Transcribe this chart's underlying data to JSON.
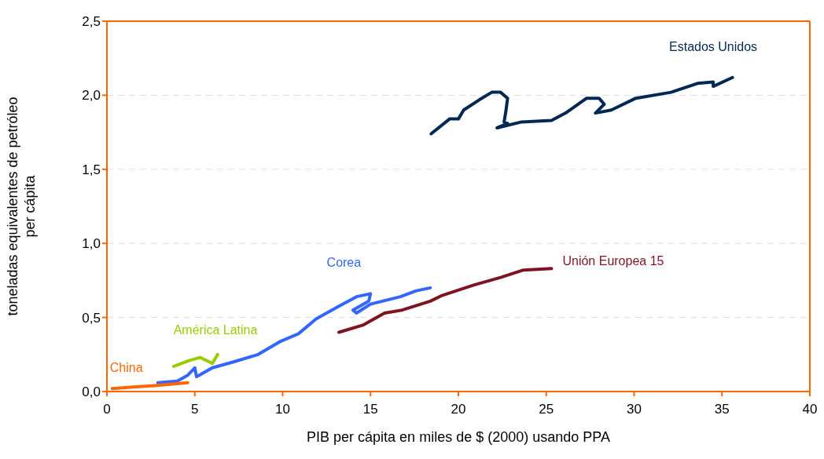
{
  "chart_data": {
    "type": "line",
    "xlabel": "PIB per cápita en miles de $ (2000) usando PPA",
    "ylabel": "toneladas equivalentes de petróleo per cápita",
    "xlim": [
      0,
      40
    ],
    "xticks": [
      0,
      5,
      10,
      15,
      20,
      25,
      30,
      35,
      40
    ],
    "ylim": [
      0,
      2.5
    ],
    "yticks": [
      {
        "value": 0,
        "label": "0,0"
      },
      {
        "value": 0.5,
        "label": "0,5"
      },
      {
        "value": 1,
        "label": "1,0"
      },
      {
        "value": 1.5,
        "label": "1,5"
      },
      {
        "value": 2,
        "label": "2,0"
      },
      {
        "value": 2.5,
        "label": "2,5"
      }
    ],
    "grid": "y",
    "marker": "none",
    "line_style": "solid",
    "series": [
      {
        "color": "#002855",
        "x": [
          18.45,
          19.5,
          20.0,
          20.3,
          21.2,
          21.9,
          22.4,
          22.8,
          22.7,
          22.6,
          22.8,
          22.2,
          23.6,
          25.3,
          26.1,
          27.3,
          28.0,
          28.3,
          27.8,
          28.7,
          30.1,
          32.1,
          33.6,
          34.5,
          34.5,
          35.6
        ],
        "values": [
          1.74,
          1.84,
          1.84,
          1.9,
          1.97,
          2.02,
          2.02,
          1.98,
          1.89,
          1.82,
          1.81,
          1.78,
          1.82,
          1.83,
          1.88,
          1.98,
          1.98,
          1.94,
          1.88,
          1.9,
          1.98,
          2.02,
          2.08,
          2.09,
          2.06,
          2.12
        ]
      },
      {
        "color": "#3366ff",
        "x": [
          2.9,
          4.0,
          4.6,
          5.0,
          5.1,
          6.0,
          7.2,
          8.6,
          9.9,
          10.9,
          11.9,
          13.1,
          14.2,
          15.0,
          14.9,
          14.0,
          14.2,
          15.0,
          16.7,
          17.6,
          18.4
        ],
        "values": [
          0.06,
          0.07,
          0.11,
          0.16,
          0.1,
          0.16,
          0.2,
          0.25,
          0.34,
          0.39,
          0.49,
          0.57,
          0.64,
          0.66,
          0.61,
          0.55,
          0.53,
          0.59,
          0.64,
          0.68,
          0.7
        ]
      },
      {
        "color": "#7f1420",
        "x": [
          13.2,
          14.6,
          15.8,
          16.8,
          18.4,
          19.1,
          20.9,
          22.4,
          23.7,
          25.3
        ],
        "values": [
          0.4,
          0.45,
          0.53,
          0.55,
          0.61,
          0.65,
          0.72,
          0.77,
          0.82,
          0.83
        ]
      },
      {
        "color": "#99cc00",
        "x": [
          3.8,
          4.7,
          5.3,
          6.0,
          6.3
        ],
        "values": [
          0.17,
          0.21,
          0.23,
          0.19,
          0.25
        ]
      },
      {
        "color": "#ff6600",
        "x": [
          0.3,
          1.5,
          2.7,
          4.6
        ],
        "values": [
          0.02,
          0.03,
          0.04,
          0.06
        ]
      }
    ],
    "annotations": [
      {
        "text": "Estados Unidos",
        "x": 34.5,
        "y": 2.09
      },
      {
        "text": "Corea",
        "x": 14.2,
        "y": 0.64
      },
      {
        "text": "Unión Europea 15",
        "x": 25.3,
        "y": 0.83
      },
      {
        "text": "América Latina",
        "x": 4.7,
        "y": 0.21
      },
      {
        "text": "China",
        "x": 0.3,
        "y": 0.02
      }
    ]
  }
}
